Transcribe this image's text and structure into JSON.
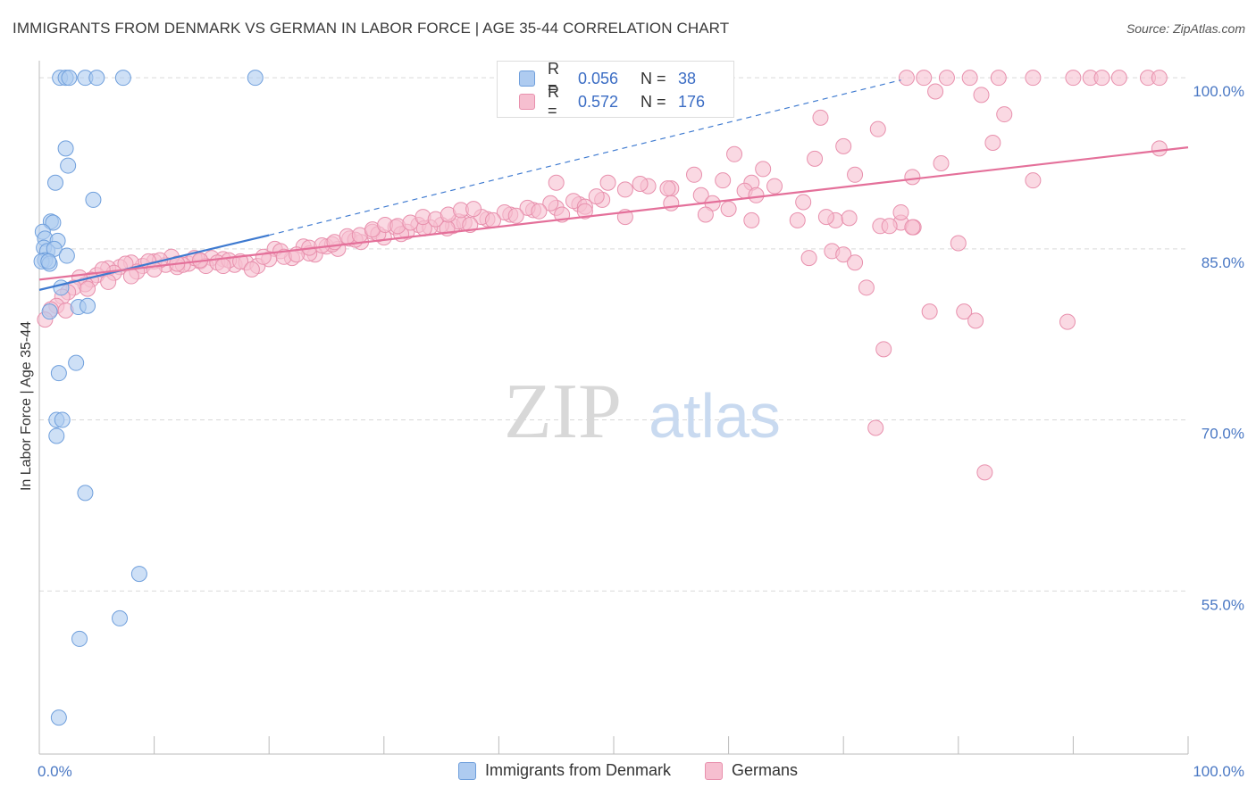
{
  "title": "IMMIGRANTS FROM DENMARK VS GERMAN IN LABOR FORCE | AGE 35-44 CORRELATION CHART",
  "source": "Source: ZipAtlas.com",
  "watermark": {
    "zip": "ZIP",
    "atlas": "atlas"
  },
  "colors": {
    "blue_fill": "#aecbf0",
    "blue_stroke": "#6f9fdc",
    "blue_line": "#3e7ad0",
    "pink_fill": "#f6bfd0",
    "pink_stroke": "#e890ad",
    "pink_line": "#e4709a",
    "tick_text": "#4a78c4",
    "grid": "#d9d9d9"
  },
  "legend": {
    "rows": [
      {
        "r_label": "R =",
        "r_value": "0.056",
        "n_label": "N =",
        "n_value": "38"
      },
      {
        "r_label": "R =",
        "r_value": "0.572",
        "n_label": "N =",
        "n_value": "176"
      }
    ]
  },
  "bottom_legend": [
    "Immigrants from Denmark",
    "Germans"
  ],
  "chart_data": {
    "type": "scatter",
    "title": "IMMIGRANTS FROM DENMARK VS GERMAN IN LABOR FORCE | AGE 35-44 CORRELATION CHART",
    "xlabel": "",
    "ylabel": "In Labor Force | Age 35-44",
    "xlim": [
      0,
      100
    ],
    "ylim": [
      40.7,
      101.5
    ],
    "x_ticks": [
      {
        "v": 0,
        "label": "0.0%"
      },
      {
        "v": 100,
        "label": "100.0%"
      }
    ],
    "y_ticks": [
      {
        "v": 100,
        "label": "100.0%"
      },
      {
        "v": 85,
        "label": "85.0%"
      },
      {
        "v": 70,
        "label": "70.0%"
      },
      {
        "v": 55,
        "label": "55.0%"
      }
    ],
    "grid": true,
    "series": [
      {
        "name": "Immigrants from Denmark",
        "trend": {
          "x": [
            0,
            20
          ],
          "y": [
            81.4,
            86.2
          ],
          "dashed_to": [
            75,
            99.8
          ]
        },
        "points": [
          [
            1.8,
            100
          ],
          [
            2.3,
            100
          ],
          [
            2.6,
            100
          ],
          [
            4.0,
            100
          ],
          [
            5.0,
            100
          ],
          [
            7.3,
            100
          ],
          [
            18.8,
            100
          ],
          [
            2.3,
            93.8
          ],
          [
            2.5,
            92.3
          ],
          [
            1.4,
            90.8
          ],
          [
            4.7,
            89.3
          ],
          [
            1.0,
            87.4
          ],
          [
            1.2,
            87.3
          ],
          [
            0.3,
            86.5
          ],
          [
            0.5,
            85.9
          ],
          [
            1.6,
            85.7
          ],
          [
            0.4,
            85.1
          ],
          [
            0.7,
            84.8
          ],
          [
            1.3,
            85.0
          ],
          [
            2.4,
            84.4
          ],
          [
            0.5,
            84.0
          ],
          [
            0.2,
            83.9
          ],
          [
            0.9,
            83.7
          ],
          [
            0.8,
            83.9
          ],
          [
            1.9,
            81.6
          ],
          [
            3.4,
            79.9
          ],
          [
            4.2,
            80.0
          ],
          [
            0.9,
            79.5
          ],
          [
            3.2,
            75.0
          ],
          [
            1.7,
            74.1
          ],
          [
            1.5,
            70.0
          ],
          [
            2.0,
            70.0
          ],
          [
            1.5,
            68.6
          ],
          [
            4.0,
            63.6
          ],
          [
            8.7,
            56.5
          ],
          [
            7.0,
            52.6
          ],
          [
            3.5,
            50.8
          ],
          [
            1.7,
            43.9
          ]
        ]
      },
      {
        "name": "Germans",
        "trend": {
          "x": [
            0,
            100
          ],
          "y": [
            82.3,
            93.9
          ]
        },
        "points": [
          [
            75.5,
            100
          ],
          [
            77,
            100
          ],
          [
            79,
            100
          ],
          [
            81,
            100
          ],
          [
            83.5,
            100
          ],
          [
            86.5,
            100
          ],
          [
            90,
            100
          ],
          [
            91.5,
            100
          ],
          [
            92.5,
            100
          ],
          [
            94,
            100
          ],
          [
            96.5,
            100
          ],
          [
            97.5,
            100
          ],
          [
            78,
            98.8
          ],
          [
            82,
            98.5
          ],
          [
            84,
            96.8
          ],
          [
            68,
            96.5
          ],
          [
            73,
            95.5
          ],
          [
            70,
            94
          ],
          [
            83,
            94.3
          ],
          [
            97.5,
            93.8
          ],
          [
            60.5,
            93.3
          ],
          [
            67.5,
            92.9
          ],
          [
            78.5,
            92.5
          ],
          [
            63,
            92
          ],
          [
            76,
            91.3
          ],
          [
            71,
            91.5
          ],
          [
            86.5,
            91
          ],
          [
            57,
            91.5
          ],
          [
            59.5,
            91
          ],
          [
            62,
            90.8
          ],
          [
            64,
            90.5
          ],
          [
            53,
            90.5
          ],
          [
            55,
            90.3
          ],
          [
            49.5,
            90.8
          ],
          [
            51,
            90.2
          ],
          [
            45,
            90.8
          ],
          [
            36,
            87
          ],
          [
            52.3,
            90.7
          ],
          [
            54.7,
            90.3
          ],
          [
            61.4,
            90.1
          ],
          [
            62.4,
            89.7
          ],
          [
            57.6,
            89.7
          ],
          [
            58.6,
            89.0
          ],
          [
            66.5,
            89.1
          ],
          [
            69.3,
            87.5
          ],
          [
            70.5,
            87.7
          ],
          [
            73.2,
            87.0
          ],
          [
            75.0,
            87.3
          ],
          [
            76.1,
            86.9
          ],
          [
            20.5,
            85.0
          ],
          [
            23,
            85.2
          ],
          [
            25,
            85.2
          ],
          [
            27,
            85.9
          ],
          [
            29,
            86.5
          ],
          [
            31,
            86.9
          ],
          [
            33,
            87.1
          ],
          [
            35,
            87.1
          ],
          [
            37,
            87.3
          ],
          [
            39,
            87.6
          ],
          [
            41,
            88.0
          ],
          [
            43,
            88.4
          ],
          [
            45,
            88.6
          ],
          [
            47,
            88.9
          ],
          [
            49,
            89.3
          ],
          [
            22,
            84.2
          ],
          [
            24,
            84.5
          ],
          [
            26,
            85.0
          ],
          [
            28,
            85.6
          ],
          [
            30,
            86.0
          ],
          [
            32,
            86.5
          ],
          [
            34,
            86.9
          ],
          [
            36.5,
            87.4
          ],
          [
            38.5,
            87.8
          ],
          [
            40.5,
            88.2
          ],
          [
            42.5,
            88.6
          ],
          [
            44.5,
            89.0
          ],
          [
            46.5,
            89.2
          ],
          [
            48.5,
            89.6
          ],
          [
            21,
            84.8
          ],
          [
            23.5,
            84.6
          ],
          [
            25.5,
            85.4
          ],
          [
            27.5,
            85.8
          ],
          [
            29.5,
            86.3
          ],
          [
            31.5,
            86.3
          ],
          [
            33.5,
            86.8
          ],
          [
            35.5,
            86.8
          ],
          [
            37.5,
            87.1
          ],
          [
            39.5,
            87.5
          ],
          [
            41.5,
            87.9
          ],
          [
            43.5,
            88.3
          ],
          [
            45.5,
            88.0
          ],
          [
            47.5,
            88.7
          ],
          [
            14,
            83.9
          ],
          [
            15,
            84.2
          ],
          [
            16,
            84.1
          ],
          [
            17,
            83.6
          ],
          [
            18,
            83.8
          ],
          [
            19,
            83.5
          ],
          [
            20,
            84.1
          ],
          [
            13,
            83.7
          ],
          [
            12,
            83.4
          ],
          [
            11,
            83.6
          ],
          [
            10,
            83.9
          ],
          [
            9,
            83.5
          ],
          [
            8,
            83.8
          ],
          [
            7,
            83.4
          ],
          [
            6,
            83.3
          ],
          [
            5,
            82.7
          ],
          [
            14.5,
            83.5
          ],
          [
            15.5,
            83.8
          ],
          [
            16.5,
            84.0
          ],
          [
            17.5,
            83.9
          ],
          [
            18.5,
            83.2
          ],
          [
            19.5,
            84.3
          ],
          [
            13.5,
            84.2
          ],
          [
            12.5,
            83.6
          ],
          [
            11.5,
            84.3
          ],
          [
            10.5,
            84.0
          ],
          [
            9.5,
            83.9
          ],
          [
            8.5,
            83.0
          ],
          [
            7.5,
            83.7
          ],
          [
            6.5,
            82.9
          ],
          [
            5.5,
            83.2
          ],
          [
            4.5,
            82.3
          ],
          [
            4,
            81.9
          ],
          [
            3.5,
            82.5
          ],
          [
            3,
            81.6
          ],
          [
            2.5,
            81.2
          ],
          [
            2,
            80.8
          ],
          [
            1.5,
            80.0
          ],
          [
            1,
            79.7
          ],
          [
            0.5,
            78.8
          ],
          [
            2.3,
            79.6
          ],
          [
            4.2,
            81.5
          ],
          [
            6,
            82.1
          ],
          [
            8,
            82.6
          ],
          [
            10,
            83.2
          ],
          [
            12,
            83.7
          ],
          [
            14,
            84.0
          ],
          [
            16,
            83.5
          ],
          [
            21.3,
            84.3
          ],
          [
            22.4,
            84.5
          ],
          [
            23.5,
            85.1
          ],
          [
            24.6,
            85.3
          ],
          [
            25.7,
            85.6
          ],
          [
            26.8,
            86.1
          ],
          [
            27.9,
            86.2
          ],
          [
            29.0,
            86.7
          ],
          [
            30.1,
            87.1
          ],
          [
            31.2,
            87.0
          ],
          [
            32.3,
            87.3
          ],
          [
            33.4,
            87.8
          ],
          [
            34.5,
            87.6
          ],
          [
            35.6,
            88.0
          ],
          [
            36.7,
            88.4
          ],
          [
            37.8,
            88.5
          ],
          [
            67,
            84.2
          ],
          [
            69,
            84.8
          ],
          [
            70,
            84.5
          ],
          [
            71,
            83.8
          ],
          [
            72,
            81.6
          ],
          [
            74,
            87.0
          ],
          [
            75,
            88.2
          ],
          [
            76,
            86.9
          ],
          [
            80,
            85.5
          ],
          [
            66,
            87.5
          ],
          [
            68.5,
            87.8
          ],
          [
            62,
            87.5
          ],
          [
            60,
            88.5
          ],
          [
            55,
            89.0
          ],
          [
            58,
            88.0
          ],
          [
            51,
            87.8
          ],
          [
            47.5,
            88.3
          ],
          [
            73.5,
            76.2
          ],
          [
            80.5,
            79.5
          ],
          [
            81.5,
            78.7
          ],
          [
            77.5,
            79.5
          ],
          [
            89.5,
            78.6
          ],
          [
            72.8,
            69.3
          ],
          [
            82.3,
            65.4
          ]
        ]
      }
    ]
  }
}
